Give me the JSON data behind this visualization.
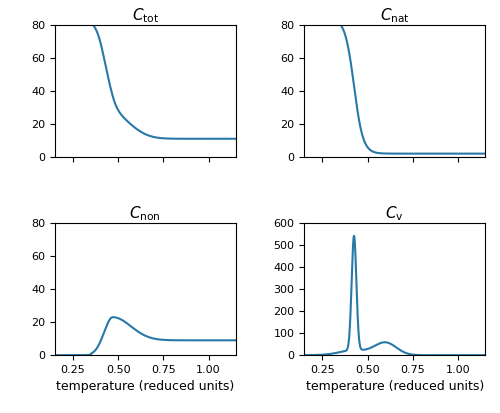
{
  "line_color": "#2878a8",
  "line_width": 1.5,
  "temp_min": 0.15,
  "temp_max": 1.15,
  "xlabel": "temperature (reduced units)",
  "titles": [
    "$C_\\mathrm{tot}$",
    "$C_\\mathrm{nat}$",
    "$C_\\mathrm{non}$",
    "$C_\\mathrm{v}$"
  ],
  "yticks_tot": [
    0,
    20,
    40,
    60,
    80
  ],
  "yticks_nat": [
    0,
    20,
    40,
    60,
    80
  ],
  "yticks_non": [
    0,
    20,
    40,
    60,
    80
  ],
  "yticks_cv": [
    0,
    100,
    200,
    300,
    400,
    500,
    600
  ],
  "xticks": [
    0.25,
    0.5,
    0.75,
    1.0
  ],
  "background_color": "#ffffff",
  "title_fontsize": 11,
  "tick_fontsize": 8,
  "xlabel_fontsize": 9
}
